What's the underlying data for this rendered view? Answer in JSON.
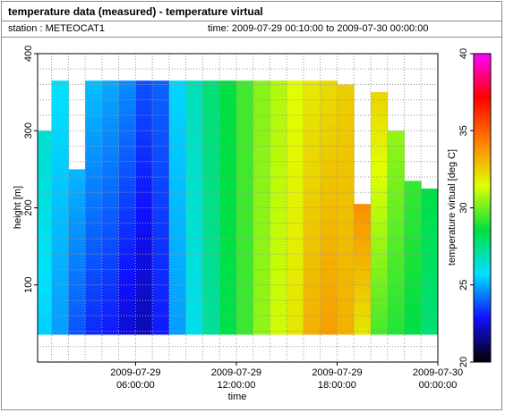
{
  "header": {
    "title": "temperature data (measured) - temperature virtual",
    "station": "station : METEOCAT1",
    "time_range": "time: 2009-07-29 00:10:00 to 2009-07-30 00:00:00"
  },
  "chart_data": {
    "type": "heatmap",
    "title": "temperature data (measured) - temperature virtual",
    "xlabel": "time",
    "ylabel": "height [m]",
    "colorbar_label": "temperature virtual [deg C]",
    "x_range_hours": [
      0.1667,
      24.0
    ],
    "ylim": [
      0,
      400
    ],
    "clim": [
      20,
      40
    ],
    "x_ticks": [
      {
        "hours": 6,
        "line1": "2009-07-29",
        "line2": "06:00:00"
      },
      {
        "hours": 12,
        "line1": "2009-07-29",
        "line2": "12:00:00"
      },
      {
        "hours": 18,
        "line1": "2009-07-29",
        "line2": "18:00:00"
      },
      {
        "hours": 24,
        "line1": "2009-07-30",
        "line2": "00:00:00"
      }
    ],
    "y_ticks": [
      "100",
      "200",
      "300",
      "400"
    ],
    "y_tick_values": [
      100,
      200,
      300,
      400
    ],
    "colorbar_ticks": [
      "20",
      "25",
      "30",
      "35",
      "40"
    ],
    "colorbar_tick_values": [
      20,
      25,
      30,
      35,
      40
    ],
    "colormap": [
      "#000000",
      "#1010ff",
      "#00e0ff",
      "#00e040",
      "#e0ff00",
      "#ff8000",
      "#ff0000",
      "#ff00ff"
    ],
    "data_bottom_m": 36,
    "grid": true,
    "profiles_approx": [
      {
        "start_h": 0.17,
        "end_h": 1.0,
        "top_m": 300,
        "t_bottom": 25.5,
        "t_top": 26.5
      },
      {
        "start_h": 1.0,
        "end_h": 2.0,
        "top_m": 365,
        "t_bottom": 24.8,
        "t_top": 25.8
      },
      {
        "start_h": 2.0,
        "end_h": 3.0,
        "top_m": 250,
        "t_bottom": 23.8,
        "t_top": 25.2
      },
      {
        "start_h": 3.0,
        "end_h": 4.0,
        "top_m": 365,
        "t_bottom": 23.2,
        "t_top": 25.3
      },
      {
        "start_h": 4.0,
        "end_h": 5.0,
        "top_m": 365,
        "t_bottom": 23.0,
        "t_top": 25.0
      },
      {
        "start_h": 5.0,
        "end_h": 6.0,
        "top_m": 365,
        "t_bottom": 22.4,
        "t_top": 24.6
      },
      {
        "start_h": 6.0,
        "end_h": 7.0,
        "top_m": 365,
        "t_bottom": 22.0,
        "t_top": 23.8
      },
      {
        "start_h": 7.0,
        "end_h": 8.0,
        "top_m": 365,
        "t_bottom": 23.0,
        "t_top": 24.0
      },
      {
        "start_h": 8.0,
        "end_h": 9.0,
        "top_m": 365,
        "t_bottom": 24.8,
        "t_top": 25.6
      },
      {
        "start_h": 9.0,
        "end_h": 10.0,
        "top_m": 365,
        "t_bottom": 26.0,
        "t_top": 26.8
      },
      {
        "start_h": 10.0,
        "end_h": 11.0,
        "top_m": 365,
        "t_bottom": 27.2,
        "t_top": 27.8
      },
      {
        "start_h": 11.0,
        "end_h": 12.0,
        "top_m": 365,
        "t_bottom": 28.4,
        "t_top": 28.6
      },
      {
        "start_h": 12.0,
        "end_h": 13.0,
        "top_m": 365,
        "t_bottom": 29.3,
        "t_top": 29.4
      },
      {
        "start_h": 13.0,
        "end_h": 14.0,
        "top_m": 365,
        "t_bottom": 30.4,
        "t_top": 30.3
      },
      {
        "start_h": 14.0,
        "end_h": 15.0,
        "top_m": 365,
        "t_bottom": 31.2,
        "t_top": 30.8
      },
      {
        "start_h": 15.0,
        "end_h": 16.0,
        "top_m": 365,
        "t_bottom": 32.0,
        "t_top": 31.4
      },
      {
        "start_h": 16.0,
        "end_h": 17.0,
        "top_m": 365,
        "t_bottom": 33.2,
        "t_top": 31.9
      },
      {
        "start_h": 17.0,
        "end_h": 18.0,
        "top_m": 365,
        "t_bottom": 33.6,
        "t_top": 32.2
      },
      {
        "start_h": 18.0,
        "end_h": 19.0,
        "top_m": 360,
        "t_bottom": 33.2,
        "t_top": 32.5
      },
      {
        "start_h": 19.0,
        "end_h": 20.0,
        "top_m": 205,
        "t_bottom": 32.0,
        "t_top": 34.0
      },
      {
        "start_h": 20.0,
        "end_h": 21.0,
        "top_m": 350,
        "t_bottom": 29.5,
        "t_top": 32.4
      },
      {
        "start_h": 21.0,
        "end_h": 22.0,
        "top_m": 300,
        "t_bottom": 29.0,
        "t_top": 30.5
      },
      {
        "start_h": 22.0,
        "end_h": 23.0,
        "top_m": 235,
        "t_bottom": 28.5,
        "t_top": 29.3
      },
      {
        "start_h": 23.0,
        "end_h": 24.0,
        "top_m": 225,
        "t_bottom": 27.8,
        "t_top": 28.5
      }
    ]
  }
}
